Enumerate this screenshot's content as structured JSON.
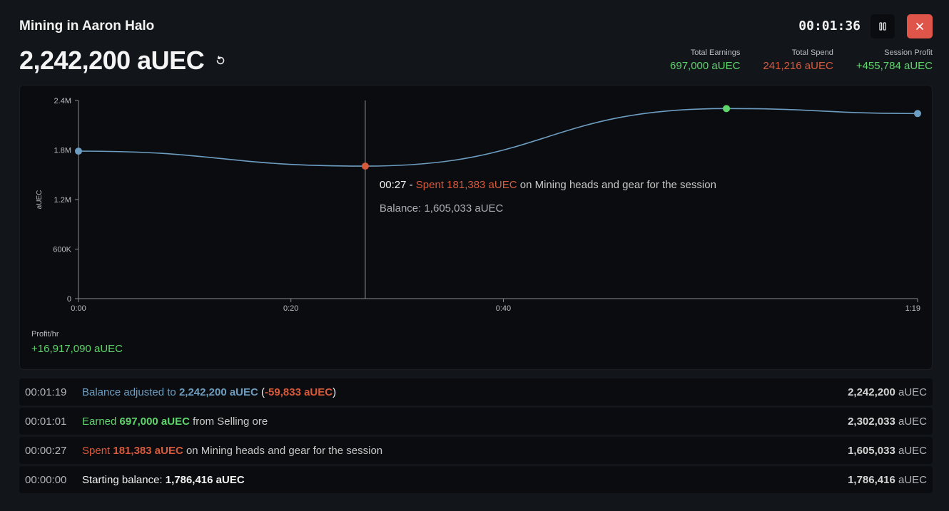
{
  "header": {
    "title": "Mining in Aaron Halo",
    "balance": "2,242,200 aUEC",
    "timer": "00:01:36"
  },
  "stats": {
    "earnings": {
      "label": "Total Earnings",
      "value": "697,000 aUEC"
    },
    "spend": {
      "label": "Total Spend",
      "value": "241,216 aUEC"
    },
    "profit": {
      "label": "Session Profit",
      "value": "+455,784 aUEC"
    }
  },
  "chart_data": {
    "type": "line",
    "ylabel": "aUEC",
    "xlabel": "",
    "ylim": [
      0,
      2400000
    ],
    "xlim_minutes": [
      0,
      79
    ],
    "y_ticks": [
      "0",
      "600K",
      "1.2M",
      "1.8M",
      "2.4M"
    ],
    "x_ticks": [
      "0:00",
      "0:20",
      "0:40",
      "1:19"
    ],
    "series": [
      {
        "points": [
          {
            "x": "0:00",
            "y": 1786416
          },
          {
            "x": "0:27",
            "y": 1605033
          },
          {
            "x": "1:01",
            "y": 2302033
          },
          {
            "x": "1:19",
            "y": 2242200
          }
        ]
      }
    ],
    "colors": {
      "line": "#6d9ec2",
      "start": "#6d9ec2",
      "spend": "#d85a3c",
      "earn": "#5fd56b",
      "end": "#6d9ec2"
    },
    "tooltip": {
      "time": "00:27",
      "sep": "-",
      "spent_word": "Spent",
      "amount": "181,383 aUEC",
      "rest": "on Mining heads and gear for the session",
      "balance": "Balance: 1,605,033 aUEC"
    }
  },
  "profit_rate": {
    "label": "Profit/hr",
    "value": "+16,917,090 aUEC"
  },
  "log": [
    {
      "time": "00:01:19",
      "pre": "Balance adjusted to",
      "amount": "2,242,200 aUEC",
      "paren_open": "(",
      "delta": "-59,833 aUEC",
      "paren_close": ")",
      "balance": "2,242,200",
      "unit": "aUEC"
    },
    {
      "time": "00:01:01",
      "pre": "Earned",
      "amount": "697,000 aUEC",
      "post": "from Selling ore",
      "balance": "2,302,033",
      "unit": "aUEC"
    },
    {
      "time": "00:00:27",
      "pre": "Spent",
      "amount": "181,383 aUEC",
      "post": "on Mining heads and gear for the session",
      "balance": "1,605,033",
      "unit": "aUEC"
    },
    {
      "time": "00:00:00",
      "pre": "Starting balance:",
      "amount": "1,786,416 aUEC",
      "balance": "1,786,416",
      "unit": "aUEC"
    }
  ]
}
